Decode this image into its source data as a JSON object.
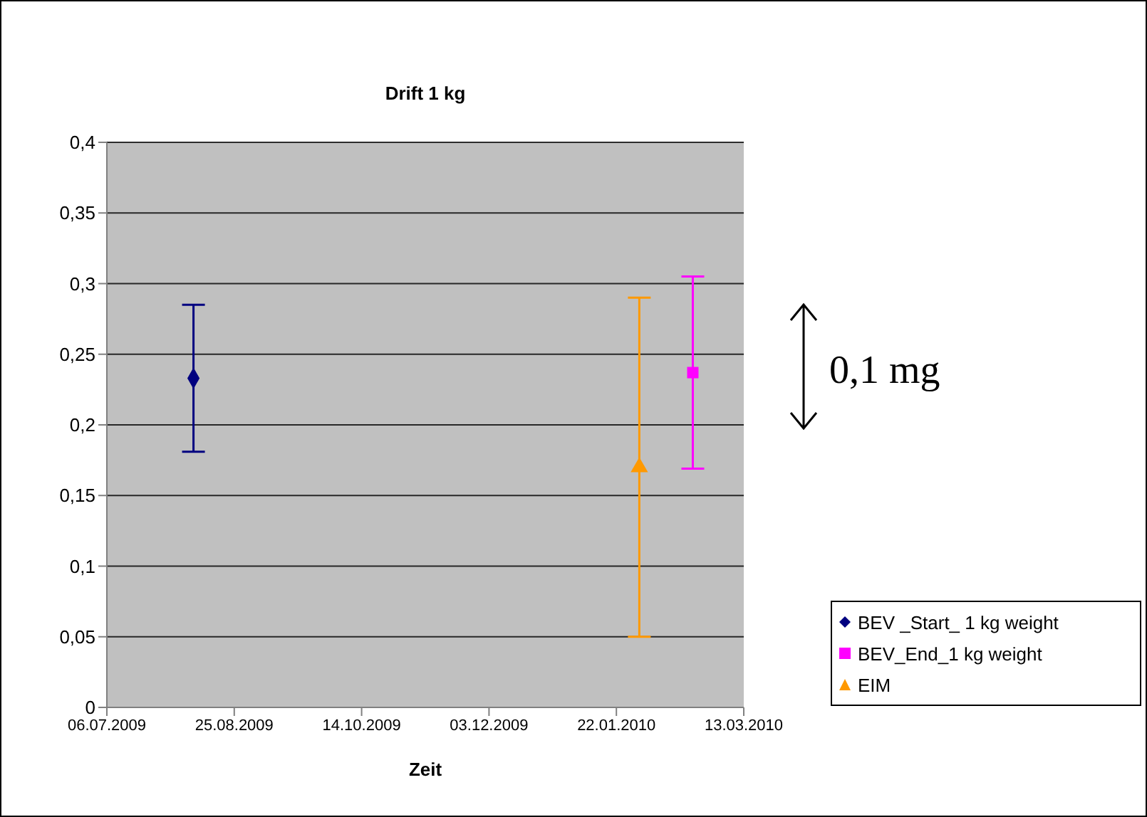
{
  "chart_data": {
    "type": "scatter",
    "title": "Drift 1 kg",
    "xlabel": "Zeit",
    "annotations": [
      "0,1 mg"
    ],
    "xlim": [
      "2009-07-06",
      "2010-03-13"
    ],
    "xticks": [
      {
        "value": "2009-07-06",
        "label": "06.07.2009"
      },
      {
        "value": "2009-08-25",
        "label": "25.08.2009"
      },
      {
        "value": "2009-10-14",
        "label": "14.10.2009"
      },
      {
        "value": "2009-12-03",
        "label": "03.12.2009"
      },
      {
        "value": "2010-01-22",
        "label": "22.01.2010"
      },
      {
        "value": "2010-03-13",
        "label": "13.03.2010"
      }
    ],
    "ylim": [
      0,
      0.4
    ],
    "yticks": [
      0,
      {
        "value": 0.05,
        "label": "0,05"
      },
      {
        "value": 0.1,
        "label": "0,1"
      },
      {
        "value": 0.15,
        "label": "0,15"
      },
      {
        "value": 0.2,
        "label": "0,2"
      },
      {
        "value": 0.25,
        "label": "0,25"
      },
      {
        "value": 0.3,
        "label": "0,3"
      },
      {
        "value": 0.35,
        "label": "0,35"
      },
      {
        "value": 0.4,
        "label": "0,4"
      }
    ],
    "grid": "y",
    "legend": "bottom right",
    "series": [
      {
        "name": "BEV _Start_ 1 kg weight",
        "color": "#000080",
        "marker": "diamond",
        "x": [
          "2009-08-09"
        ],
        "values": [
          0.233
        ],
        "errors": [
          0.052
        ]
      },
      {
        "name": "BEV_End_1 kg weight",
        "color": "#ff00ff",
        "marker": "square",
        "x": [
          "2010-02-21"
        ],
        "values": [
          0.237
        ],
        "errors": [
          0.068
        ]
      },
      {
        "name": "EIM",
        "color": "#ff9900",
        "marker": "triangle",
        "x": [
          "2010-01-31"
        ],
        "values": [
          0.17
        ],
        "errors": [
          0.12
        ]
      }
    ]
  }
}
